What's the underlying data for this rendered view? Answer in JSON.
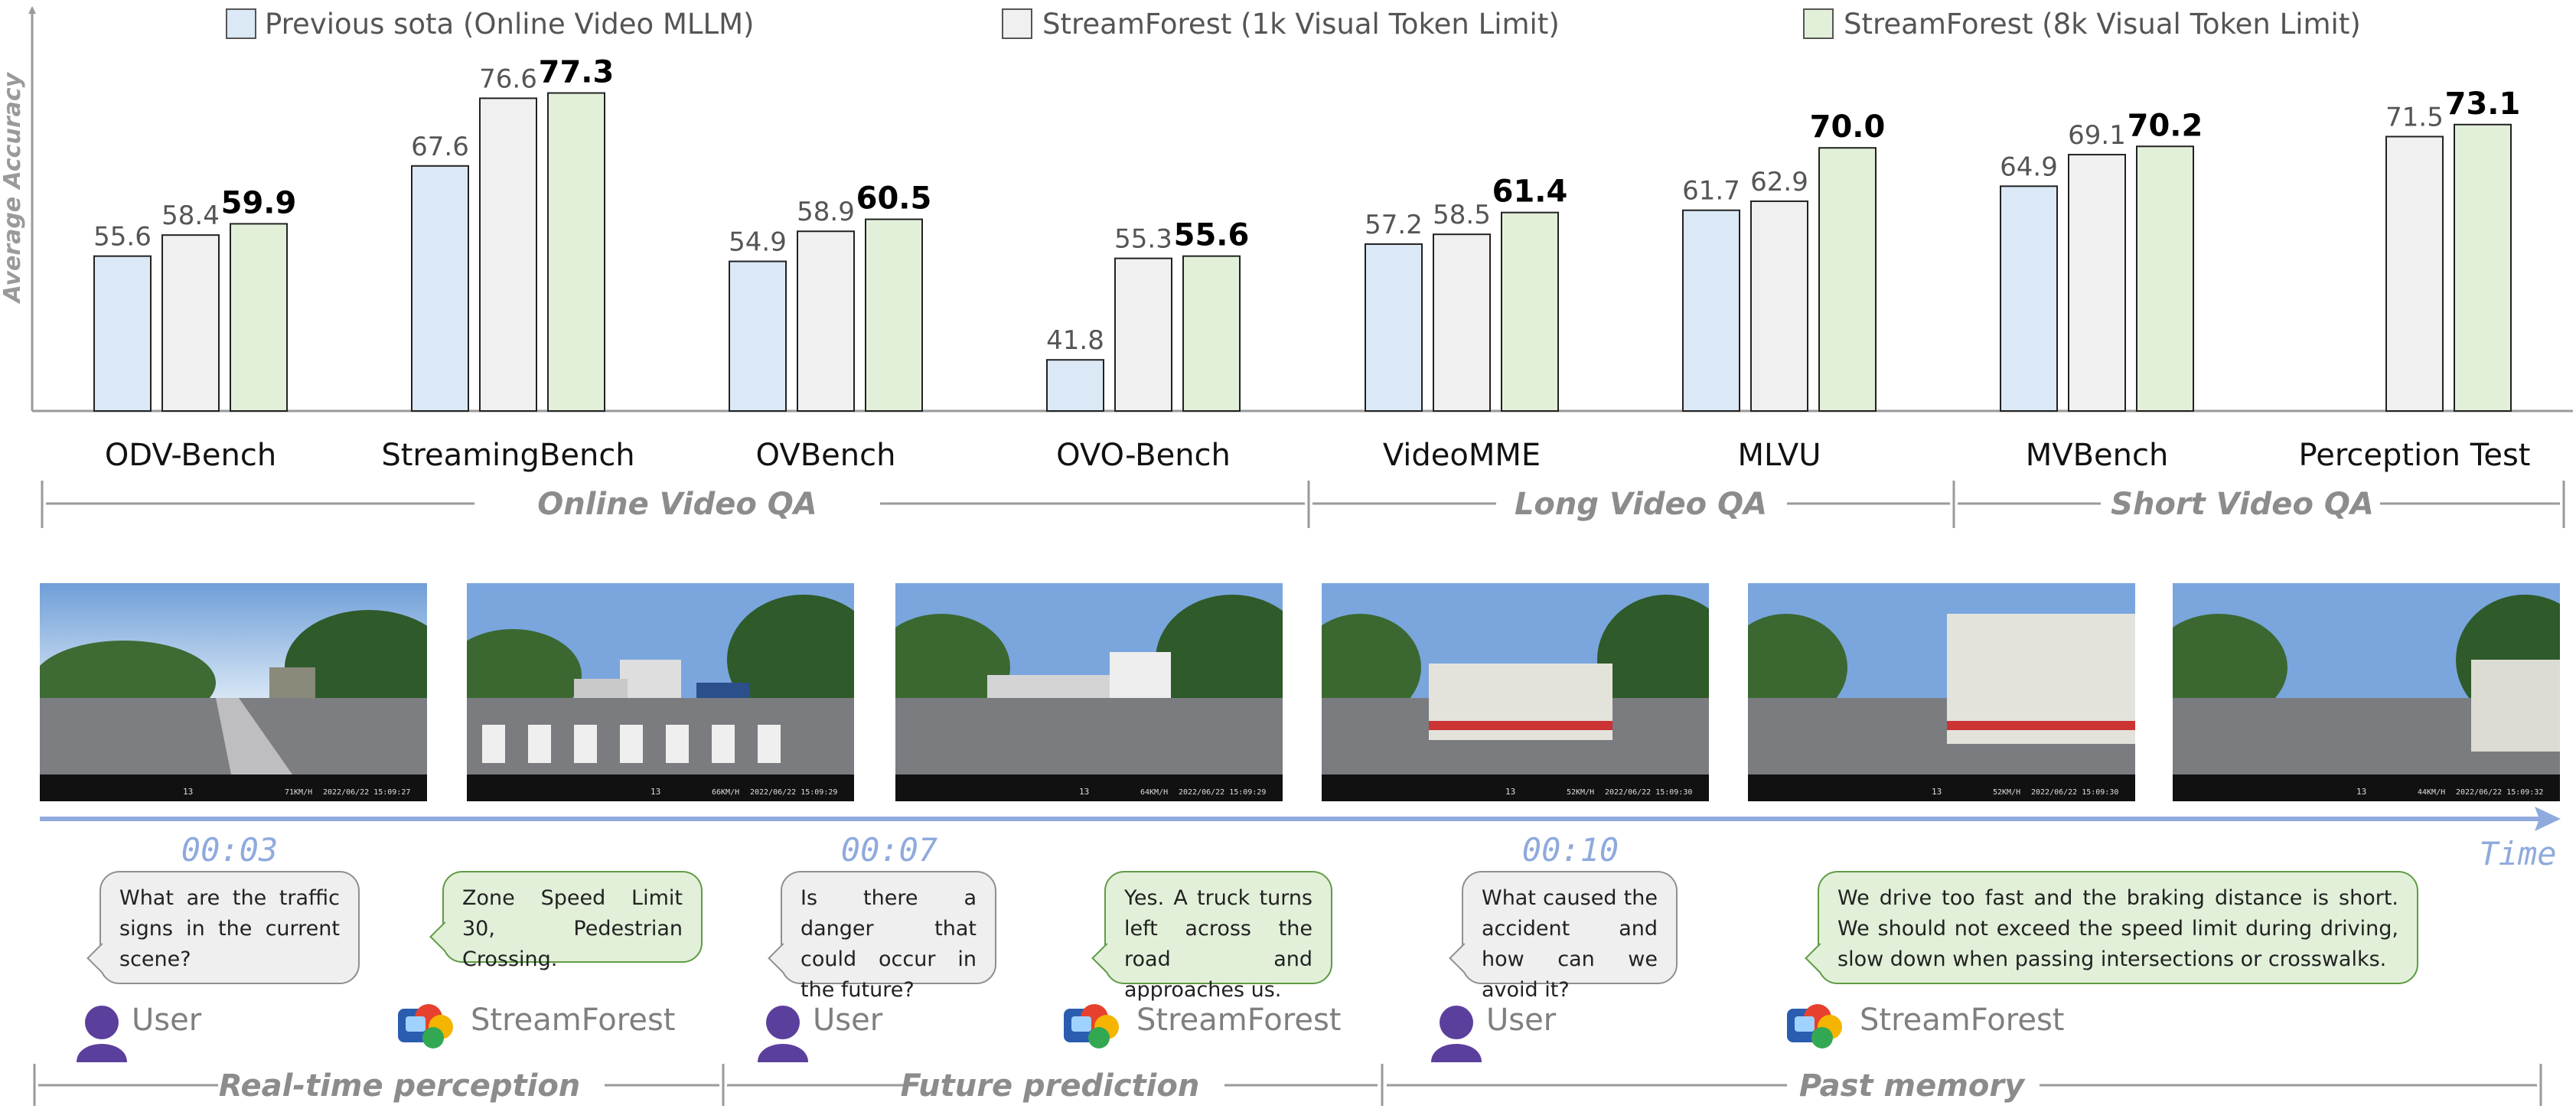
{
  "chart_data": {
    "type": "bar",
    "ylabel": "Average Accuracy",
    "categories": [
      "ODV-Bench",
      "StreamingBench",
      "OVBench",
      "OVO-Bench",
      "VideoMME",
      "MLVU",
      "MVBench",
      "Perception Test"
    ],
    "series": [
      {
        "name": "Previous sota (Online Video MLLM)",
        "color": "#dbe8f6",
        "values": [
          55.6,
          67.6,
          54.9,
          41.8,
          57.2,
          61.7,
          64.9,
          null
        ]
      },
      {
        "name": "StreamForest (1k Visual Token Limit)",
        "color": "#f0f0f0",
        "values": [
          58.4,
          76.6,
          58.9,
          55.3,
          58.5,
          62.9,
          69.1,
          71.5
        ]
      },
      {
        "name": "StreamForest (8k Visual Token Limit)",
        "color": "#e2f0d9",
        "values": [
          59.9,
          77.3,
          60.5,
          55.6,
          61.4,
          70.0,
          70.2,
          73.1
        ]
      }
    ],
    "groups": [
      {
        "label": "Online Video QA",
        "categories": [
          "ODV-Bench",
          "StreamingBench",
          "OVBench",
          "OVO-Bench"
        ]
      },
      {
        "label": "Long Video QA",
        "categories": [
          "VideoMME",
          "MLVU"
        ]
      },
      {
        "label": "Short Video QA",
        "categories": [
          "MVBench",
          "Perception Test"
        ]
      }
    ],
    "legend_position": "top",
    "grid": false
  },
  "timeline": {
    "axis_label": "Time",
    "timestamps": [
      "00:03",
      "00:07",
      "00:10"
    ],
    "frame_overlays": [
      {
        "speed": "71KM/H",
        "datetime": "2022/06/22 15:09:27",
        "frame_no": "13"
      },
      {
        "speed": "66KM/H",
        "datetime": "2022/06/22 15:09:29",
        "frame_no": "13"
      },
      {
        "speed": "64KM/H",
        "datetime": "2022/06/22 15:09:29",
        "frame_no": "13"
      },
      {
        "speed": "52KM/H",
        "datetime": "2022/06/22 15:09:30",
        "frame_no": "13"
      },
      {
        "speed": "52KM/H",
        "datetime": "2022/06/22 15:09:30",
        "frame_no": "13"
      },
      {
        "speed": "44KM/H",
        "datetime": "2022/06/22 15:09:32",
        "frame_no": "13"
      }
    ],
    "phases": [
      "Real-time perception",
      "Future prediction",
      "Past memory"
    ]
  },
  "dialog": [
    {
      "speaker": "User",
      "text": "What are the traffic signs in the current scene?"
    },
    {
      "speaker": "StreamForest",
      "text": "Zone Speed Limit 30, Pedestrian Crossing."
    },
    {
      "speaker": "User",
      "text": "Is there a danger that could occur in the future?"
    },
    {
      "speaker": "StreamForest",
      "text": "Yes. A truck turns left across the road and approaches us."
    },
    {
      "speaker": "User",
      "text": "What caused the accident and how can we avoid it?"
    },
    {
      "speaker": "StreamForest",
      "text": "We drive too fast and the braking distance is short. We should not exceed the speed limit during driving, slow down when passing intersections or crosswalks."
    }
  ]
}
